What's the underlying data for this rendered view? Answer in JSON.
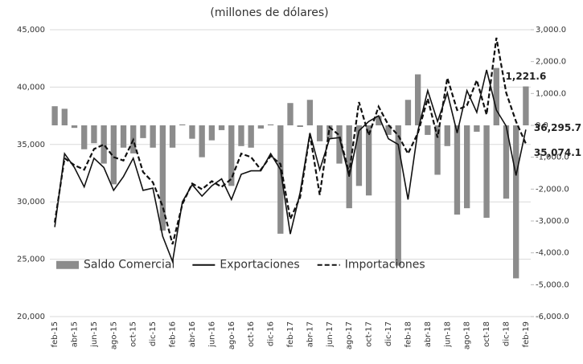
{
  "chart_data": {
    "type": "combo",
    "title": "(millones de dólares)",
    "categories": [
      "feb-15",
      null,
      "abr-15",
      null,
      "jun-15",
      null,
      "ago-15",
      null,
      "oct-15",
      null,
      "dic-15",
      null,
      "feb-16",
      null,
      "abr-16",
      null,
      "jun-16",
      null,
      "ago-16",
      null,
      "oct-16",
      null,
      "dic-16",
      null,
      "feb-17",
      null,
      "abr-17",
      null,
      "jun-17",
      null,
      "ago-17",
      null,
      "oct-17",
      null,
      "dic-17",
      null,
      "feb-18",
      null,
      "abr-18",
      null,
      "jun-18",
      null,
      "ago-18",
      null,
      "oct-18",
      null,
      "dic-18",
      null,
      "feb-19"
    ],
    "series": [
      {
        "name": "Saldo Comercial",
        "type": "bar",
        "axis": "y2",
        "color": "#8c8c8c",
        "values": [
          600,
          520,
          -80,
          -750,
          -560,
          -1200,
          -1850,
          -700,
          -880,
          -400,
          -700,
          -3300,
          -700,
          30,
          -420,
          -1000,
          -470,
          -150,
          -1900,
          -650,
          -700,
          -100,
          30,
          -3400,
          700,
          -50,
          800,
          -500,
          -400,
          -1200,
          -2600,
          -1900,
          -2200,
          300,
          -300,
          -4400,
          800,
          1600,
          -300,
          -1550,
          -650,
          -2800,
          -2600,
          -200,
          -2900,
          1800,
          -2300,
          -4800,
          1221.6
        ],
        "value_labels": [
          null,
          null,
          null,
          null,
          null,
          null,
          null,
          null,
          null,
          null,
          null,
          null,
          null,
          null,
          null,
          null,
          null,
          null,
          null,
          null,
          null,
          null,
          null,
          null,
          null,
          null,
          null,
          null,
          null,
          null,
          null,
          null,
          null,
          null,
          null,
          null,
          null,
          null,
          null,
          null,
          null,
          null,
          null,
          null,
          null,
          null,
          null,
          null,
          "1,221.6"
        ]
      },
      {
        "name": "Exportaciones",
        "type": "line",
        "style": "solid",
        "color": "#111111",
        "values": [
          27800,
          34200,
          33000,
          31300,
          33800,
          33000,
          31000,
          32200,
          33800,
          31000,
          31200,
          27000,
          24800,
          30000,
          31500,
          30500,
          31400,
          32000,
          30200,
          32400,
          32700,
          32700,
          34200,
          32800,
          27200,
          30800,
          36000,
          32800,
          35500,
          35600,
          32200,
          36200,
          37000,
          37500,
          35500,
          35000,
          30200,
          36200,
          39700,
          37000,
          39500,
          36000,
          39700,
          37800,
          41500,
          38000,
          36600,
          32300,
          36295.7
        ],
        "value_labels": [
          null,
          null,
          null,
          null,
          null,
          null,
          null,
          null,
          null,
          null,
          null,
          null,
          null,
          null,
          null,
          null,
          null,
          null,
          null,
          null,
          null,
          null,
          null,
          null,
          null,
          null,
          null,
          null,
          null,
          null,
          null,
          null,
          null,
          null,
          null,
          null,
          null,
          null,
          null,
          null,
          null,
          null,
          null,
          null,
          null,
          null,
          null,
          null,
          "36,295.7"
        ]
      },
      {
        "name": "Importaciones",
        "type": "line",
        "style": "dashed",
        "color": "#111111",
        "values": [
          28200,
          33800,
          33200,
          32800,
          34600,
          35000,
          33900,
          33600,
          35400,
          32600,
          31700,
          29600,
          26300,
          29800,
          31600,
          31100,
          31800,
          31300,
          32000,
          34200,
          33900,
          32800,
          34000,
          33300,
          28500,
          30400,
          35900,
          30600,
          36500,
          35800,
          32500,
          38700,
          35800,
          38300,
          36700,
          35800,
          34200,
          36000,
          39000,
          35600,
          40800,
          38000,
          38400,
          40600,
          37600,
          44300,
          39500,
          37000,
          35074.1
        ],
        "value_labels": [
          null,
          null,
          null,
          null,
          null,
          null,
          null,
          null,
          null,
          null,
          null,
          null,
          null,
          null,
          null,
          null,
          null,
          null,
          null,
          null,
          null,
          null,
          null,
          null,
          null,
          null,
          null,
          null,
          null,
          null,
          null,
          null,
          null,
          null,
          null,
          null,
          null,
          null,
          null,
          null,
          null,
          null,
          null,
          null,
          null,
          null,
          null,
          null,
          "35,074.1"
        ]
      }
    ],
    "ylim": [
      20000,
      45000
    ],
    "yticks": [
      {
        "value": 20000,
        "label": "20,000"
      },
      {
        "value": 25000,
        "label": "25,000"
      },
      {
        "value": 30000,
        "label": "30,000"
      },
      {
        "value": 35000,
        "label": "35,000"
      },
      {
        "value": 40000,
        "label": "40,000"
      },
      {
        "value": 45000,
        "label": "45,000"
      }
    ],
    "y2lim": [
      -6000,
      3000
    ],
    "y2ticks": [
      {
        "value": -6000,
        "label": "-6,000.0"
      },
      {
        "value": -5000,
        "label": "-5,000.0"
      },
      {
        "value": -4000,
        "label": "-4,000.0"
      },
      {
        "value": -3000,
        "label": "-3,000.0"
      },
      {
        "value": -2000,
        "label": "-2,000.0"
      },
      {
        "value": -1000,
        "label": "-1,000.0"
      },
      {
        "value": 0,
        "label": "0.0"
      },
      {
        "value": 1000,
        "label": "1,000.0"
      },
      {
        "value": 2000,
        "label": "2,000.0"
      },
      {
        "value": 3000,
        "label": "3,000.0"
      }
    ],
    "grid": true,
    "legend": "lower left"
  }
}
